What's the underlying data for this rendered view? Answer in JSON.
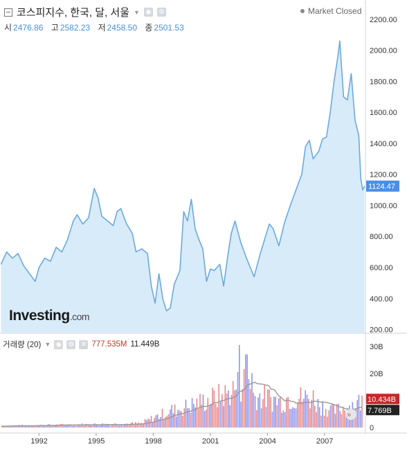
{
  "header": {
    "title": "코스피지수, 한국, 달, 서울",
    "status": "Market Closed",
    "ohlc": [
      {
        "label": "시",
        "value": "2476.86"
      },
      {
        "label": "고",
        "value": "2582.23"
      },
      {
        "label": "저",
        "value": "2458.50"
      },
      {
        "label": "종",
        "value": "2501.53"
      }
    ]
  },
  "watermark": {
    "brand": "Investing",
    "suffix": ".com"
  },
  "volume_header": {
    "label": "거래량 (20)",
    "value1": "777.535M",
    "value2": "11.449B"
  },
  "colors": {
    "line": "#6aa9e0",
    "area": "#d8ebf9",
    "up_bar": "#e8888a",
    "down_bar": "#8f94ee",
    "ma_line": "#999999",
    "price_label_bg": "#4a8fe6",
    "vol_label1_bg": "#c62828",
    "vol_label2_bg": "#222222"
  },
  "chart_data": [
    {
      "type": "area",
      "series": [
        {
          "values": [
            [
              1990.0,
              620
            ],
            [
              1990.3,
              700
            ],
            [
              1990.6,
              660
            ],
            [
              1990.9,
              690
            ],
            [
              1991.2,
              610
            ],
            [
              1991.5,
              560
            ],
            [
              1991.8,
              510
            ],
            [
              1992.0,
              600
            ],
            [
              1992.3,
              660
            ],
            [
              1992.6,
              640
            ],
            [
              1992.9,
              730
            ],
            [
              1993.2,
              700
            ],
            [
              1993.5,
              780
            ],
            [
              1993.8,
              900
            ],
            [
              1994.0,
              940
            ],
            [
              1994.3,
              880
            ],
            [
              1994.6,
              920
            ],
            [
              1994.9,
              1110
            ],
            [
              1995.1,
              1050
            ],
            [
              1995.3,
              930
            ],
            [
              1995.6,
              900
            ],
            [
              1995.9,
              870
            ],
            [
              1996.1,
              960
            ],
            [
              1996.3,
              980
            ],
            [
              1996.6,
              880
            ],
            [
              1996.9,
              820
            ],
            [
              1997.1,
              700
            ],
            [
              1997.4,
              720
            ],
            [
              1997.7,
              690
            ],
            [
              1997.9,
              480
            ],
            [
              1998.1,
              370
            ],
            [
              1998.3,
              560
            ],
            [
              1998.5,
              400
            ],
            [
              1998.7,
              320
            ],
            [
              1998.9,
              340
            ],
            [
              1999.1,
              490
            ],
            [
              1999.4,
              580
            ],
            [
              1999.6,
              960
            ],
            [
              1999.8,
              900
            ],
            [
              2000.0,
              1040
            ],
            [
              2000.2,
              850
            ],
            [
              2000.4,
              780
            ],
            [
              2000.6,
              720
            ],
            [
              2000.8,
              510
            ],
            [
              2001.0,
              590
            ],
            [
              2001.2,
              580
            ],
            [
              2001.5,
              620
            ],
            [
              2001.7,
              480
            ],
            [
              2001.9,
              660
            ],
            [
              2002.1,
              820
            ],
            [
              2002.3,
              900
            ],
            [
              2002.6,
              760
            ],
            [
              2002.9,
              660
            ],
            [
              2003.1,
              600
            ],
            [
              2003.3,
              540
            ],
            [
              2003.6,
              680
            ],
            [
              2003.9,
              800
            ],
            [
              2004.1,
              880
            ],
            [
              2004.3,
              850
            ],
            [
              2004.6,
              740
            ],
            [
              2004.9,
              890
            ],
            [
              2005.2,
              1000
            ],
            [
              2005.5,
              1100
            ],
            [
              2005.8,
              1200
            ],
            [
              2006.0,
              1380
            ],
            [
              2006.2,
              1420
            ],
            [
              2006.4,
              1300
            ],
            [
              2006.7,
              1350
            ],
            [
              2006.9,
              1430
            ],
            [
              2007.1,
              1440
            ],
            [
              2007.3,
              1600
            ],
            [
              2007.5,
              1800
            ],
            [
              2007.7,
              1960
            ],
            [
              2007.8,
              2060
            ],
            [
              2008.0,
              1700
            ],
            [
              2008.2,
              1680
            ],
            [
              2008.4,
              1850
            ],
            [
              2008.6,
              1550
            ],
            [
              2008.8,
              1450
            ],
            [
              2008.9,
              1180
            ],
            [
              2009.0,
              1100
            ],
            [
              2009.1,
              1124.47
            ]
          ]
        }
      ],
      "ylim": [
        180,
        2280
      ],
      "yticks": [
        "200.00",
        "400.00",
        "600.00",
        "800.00",
        "1000.00",
        "1200.00",
        "1400.00",
        "1600.00",
        "1800.00",
        "2000.00",
        "2200.00"
      ],
      "xticks": [
        "1992",
        "1995",
        "1998",
        "2001",
        "2004",
        "2007"
      ],
      "last_label": "1124.47"
    },
    {
      "type": "bar",
      "series_desc": "monthly volume (B shares) with 20-period moving average",
      "ylim": [
        0,
        32
      ],
      "yticks": [
        "0",
        "10B",
        "20B",
        "30B"
      ],
      "last_labels": [
        "10.434B",
        "7.769B"
      ]
    }
  ]
}
